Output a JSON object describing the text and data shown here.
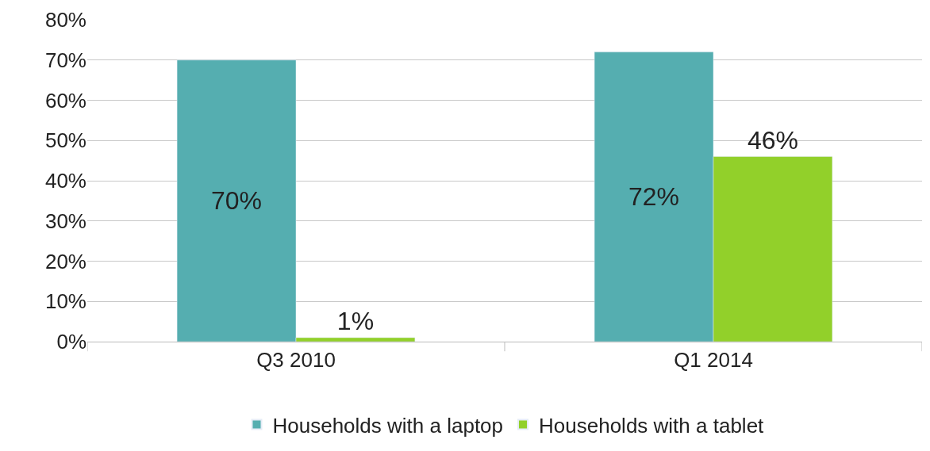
{
  "chart_data": {
    "type": "bar",
    "categories": [
      "Q3 2010",
      "Q1 2014"
    ],
    "series": [
      {
        "name": "Households with a laptop",
        "color": "#55aeb0",
        "values": [
          70,
          72
        ],
        "value_labels": [
          "70%",
          "72%"
        ]
      },
      {
        "name": "Households with a tablet",
        "color": "#92d02a",
        "values": [
          1,
          46
        ],
        "value_labels": [
          "1%",
          "46%"
        ]
      }
    ],
    "ylim": [
      0,
      80
    ],
    "yticks": [
      {
        "value": 0,
        "label": "0%"
      },
      {
        "value": 10,
        "label": "10%"
      },
      {
        "value": 20,
        "label": "20%"
      },
      {
        "value": 30,
        "label": "30%"
      },
      {
        "value": 40,
        "label": "40%"
      },
      {
        "value": 50,
        "label": "50%"
      },
      {
        "value": 60,
        "label": "60%"
      },
      {
        "value": 70,
        "label": "70%"
      },
      {
        "value": 80,
        "label": "80%"
      }
    ],
    "grid": "y",
    "legend": "bottom"
  }
}
